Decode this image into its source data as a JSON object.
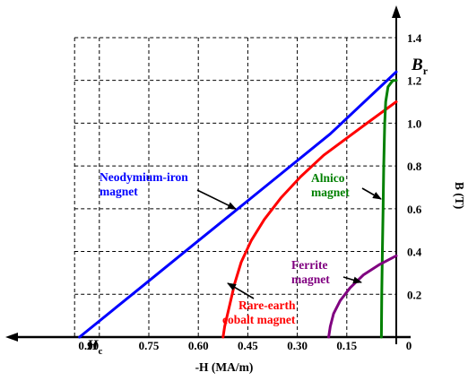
{
  "chart_data": {
    "type": "line",
    "xlabel": "-H (MA/m)",
    "ylabel": "B (T)",
    "x_direction": "reversed (0 at right, increasing to the left)",
    "xlim": [
      0,
      1.05
    ],
    "ylim": [
      0,
      1.4
    ],
    "grid": true,
    "grid_style": "dashed",
    "x_ticks": [
      {
        "value": 0.9,
        "label": "0.90"
      },
      {
        "value": 0.75,
        "label": "0.75"
      },
      {
        "value": 0.6,
        "label": "0.60"
      },
      {
        "value": 0.45,
        "label": "0.45"
      },
      {
        "value": 0.3,
        "label": "0.30"
      },
      {
        "value": 0.15,
        "label": "0.15"
      },
      {
        "value": 0,
        "label": "0"
      }
    ],
    "y_ticks": [
      {
        "value": 0.2,
        "label": "0.2"
      },
      {
        "value": 0.4,
        "label": "0.4"
      },
      {
        "value": 0.6,
        "label": "0.6"
      },
      {
        "value": 0.8,
        "label": "0.8"
      },
      {
        "value": 1.0,
        "label": "1.0"
      },
      {
        "value": 1.2,
        "label": "1.2"
      },
      {
        "value": 1.4,
        "label": "1.4"
      }
    ],
    "br_label": {
      "main": "B",
      "sub": "r"
    },
    "hc_label": {
      "main": "H",
      "sub": "c"
    },
    "series": [
      {
        "key": "neodymium",
        "color": "#0000ff",
        "points": [
          [
            0.96,
            0
          ],
          [
            0.8,
            0.2
          ],
          [
            0.6,
            0.45
          ],
          [
            0.4,
            0.7
          ],
          [
            0.2,
            0.95
          ],
          [
            0,
            1.24
          ]
        ]
      },
      {
        "key": "rare_earth",
        "color": "#ff0000",
        "points": [
          [
            0.525,
            0
          ],
          [
            0.52,
            0.05
          ],
          [
            0.505,
            0.15
          ],
          [
            0.49,
            0.25
          ],
          [
            0.47,
            0.35
          ],
          [
            0.44,
            0.45
          ],
          [
            0.4,
            0.55
          ],
          [
            0.35,
            0.65
          ],
          [
            0.29,
            0.75
          ],
          [
            0.22,
            0.85
          ],
          [
            0.15,
            0.93
          ],
          [
            0.08,
            1.01
          ],
          [
            0,
            1.1
          ]
        ]
      },
      {
        "key": "alnico",
        "color": "#008000",
        "points": [
          [
            0.045,
            0
          ],
          [
            0.044,
            0.2
          ],
          [
            0.042,
            0.4
          ],
          [
            0.04,
            0.6
          ],
          [
            0.038,
            0.8
          ],
          [
            0.035,
            1.0
          ],
          [
            0.032,
            1.1
          ],
          [
            0.025,
            1.17
          ],
          [
            0.01,
            1.2
          ],
          [
            0,
            1.2
          ]
        ]
      },
      {
        "key": "ferrite",
        "color": "#800080",
        "points": [
          [
            0.205,
            0
          ],
          [
            0.2,
            0.05
          ],
          [
            0.19,
            0.11
          ],
          [
            0.17,
            0.17
          ],
          [
            0.14,
            0.23
          ],
          [
            0.1,
            0.29
          ],
          [
            0.05,
            0.34
          ],
          [
            0,
            0.38
          ]
        ]
      }
    ],
    "annotations": [
      {
        "key": "neodymium",
        "lines": [
          "Neodymium-iron",
          "magnet"
        ],
        "color": "#0000ff"
      },
      {
        "key": "rare_earth",
        "lines": [
          "Rare-earth",
          "cobalt magnet"
        ],
        "color": "#ff0000"
      },
      {
        "key": "alnico",
        "lines": [
          "Alnico",
          "magnet"
        ],
        "color": "#008000"
      },
      {
        "key": "ferrite",
        "lines": [
          "Ferrite",
          "magnet"
        ],
        "color": "#800080"
      }
    ]
  }
}
